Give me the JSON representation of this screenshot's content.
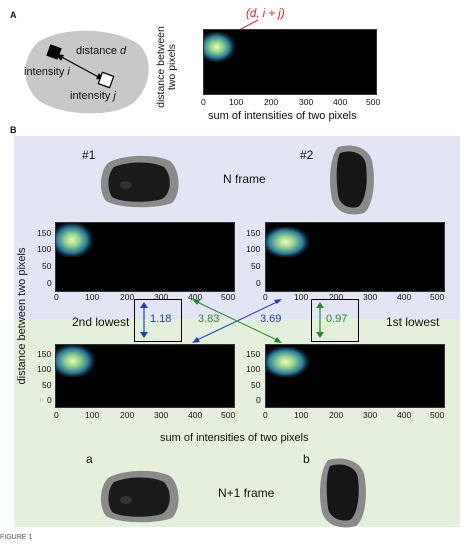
{
  "panel_a": {
    "letter": "A",
    "schematic": {
      "distance_label": "distance",
      "distance_var": "d",
      "intensity_i_label": "intensity",
      "intensity_i_var": "i",
      "intensity_j_label": "intensity",
      "intensity_j_var": "j"
    },
    "annotation": "(d, i + j)",
    "annotation_color": "#d62728",
    "ylabel_line1": "distance between",
    "ylabel_line2": "two pixels",
    "xlabel_line1": "sum of intensities of two pixels",
    "x_ticks": [
      "0",
      "100",
      "200",
      "300",
      "400",
      "500"
    ]
  },
  "panel_b": {
    "letter": "B",
    "top_bg": "#e3e5f4",
    "bottom_bg": "#e4efdc",
    "label_n1": "#1",
    "label_n2": "#2",
    "n_frame": "N frame",
    "n1_frame": "N+1 frame",
    "label_a": "a",
    "label_b": "b",
    "ylabel_line1": "distance between two pixels",
    "xlabel": "sum of intensities of two pixels",
    "y_ticks": [
      "150",
      "100",
      "50",
      "0"
    ],
    "x_ticks": [
      "0",
      "100",
      "200",
      "300",
      "400",
      "500"
    ],
    "second_lowest": "2nd lowest",
    "first_lowest": "1st lowest",
    "val_blue": "1.18",
    "val_green_left": "3.83",
    "val_blue_right": "3.69",
    "val_green_right": "0.97",
    "blue_color": "#1f3fbf",
    "green_color": "#2a8a2a"
  },
  "footer": "FIGURE 1"
}
